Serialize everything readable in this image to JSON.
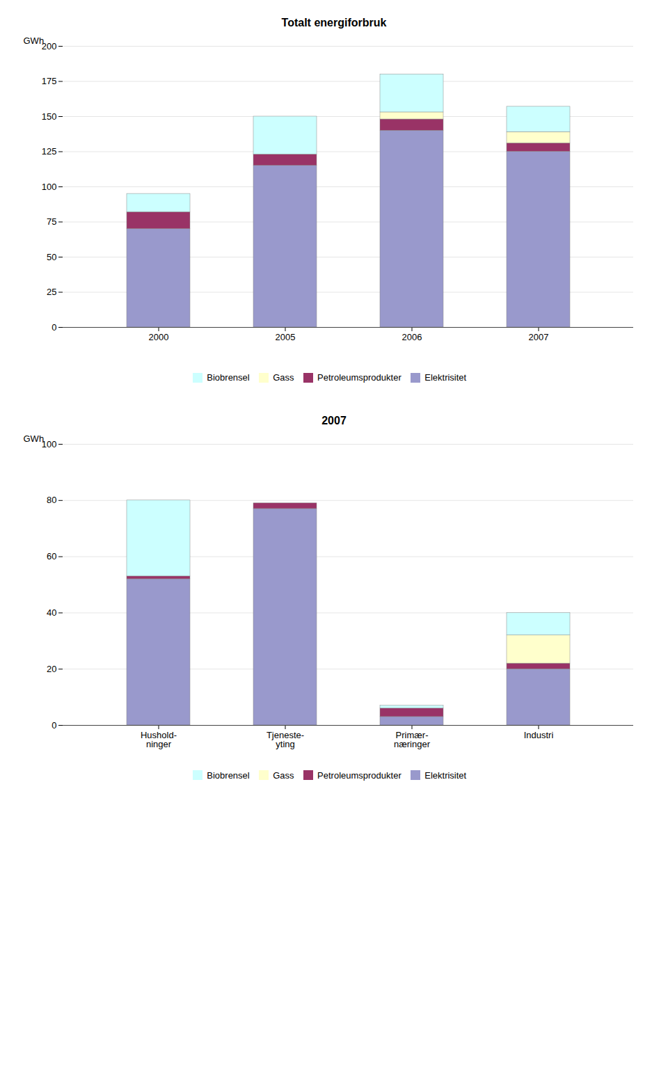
{
  "chart_data": [
    {
      "type": "bar",
      "stacked": true,
      "title": "Totalt energiforbruk",
      "ylabel": "GWh",
      "categories": [
        "2000",
        "2005",
        "2006",
        "2007"
      ],
      "series": [
        {
          "name": "Elektrisitet",
          "color": "#9999cc",
          "values": [
            70,
            115,
            140,
            125
          ]
        },
        {
          "name": "Petroleumsprodukter",
          "color": "#993366",
          "values": [
            12,
            8,
            8,
            6
          ]
        },
        {
          "name": "Gass",
          "color": "#ffffcc",
          "values": [
            0,
            0,
            5,
            8
          ]
        },
        {
          "name": "Biobrensel",
          "color": "#ccffff",
          "values": [
            13,
            27,
            27,
            18
          ]
        }
      ],
      "ylim": [
        0,
        200
      ],
      "yticks": [
        0,
        25,
        50,
        75,
        100,
        125,
        150,
        175,
        200
      ],
      "grid": true,
      "legend": "bottom"
    },
    {
      "type": "bar",
      "stacked": true,
      "title": "2007",
      "ylabel": "GWh",
      "categories": [
        "Hushold-\nninger",
        "Tjeneste-\nyting",
        "Primær-\nnæringer",
        "Industri"
      ],
      "series": [
        {
          "name": "Elektrisitet",
          "color": "#9999cc",
          "values": [
            52,
            77,
            3,
            20
          ]
        },
        {
          "name": "Petroleumsprodukter",
          "color": "#993366",
          "values": [
            1,
            2,
            3,
            2
          ]
        },
        {
          "name": "Gass",
          "color": "#ffffcc",
          "values": [
            0,
            0,
            0,
            10
          ]
        },
        {
          "name": "Biobrensel",
          "color": "#ccffff",
          "values": [
            27,
            0,
            1,
            8
          ]
        }
      ],
      "ylim": [
        0,
        100
      ],
      "yticks": [
        0,
        20,
        40,
        60,
        80,
        100
      ],
      "grid": true,
      "legend": "bottom"
    }
  ]
}
